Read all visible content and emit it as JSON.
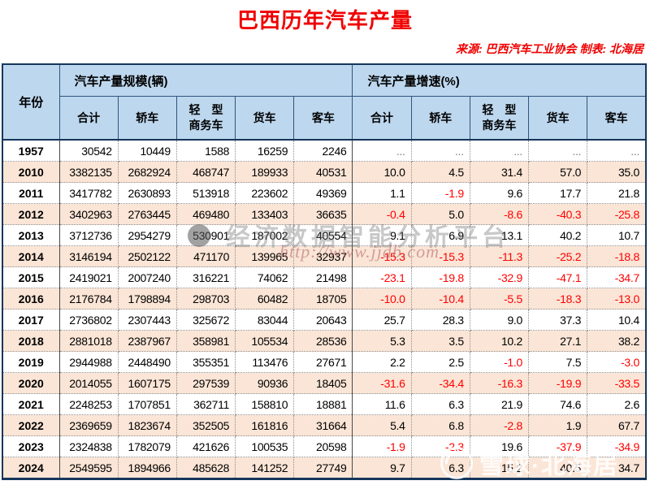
{
  "chart_data": {
    "type": "table",
    "title": "巴西历年汽车产量",
    "source_line": "来源: 巴西汽车工业协会  制表: 北海居",
    "year_header": "年份",
    "groups": [
      {
        "label": "汽车产量规模(辆)",
        "subheaders": [
          "合计",
          "轿车",
          "轻　型\n商务车",
          "货车",
          "客车"
        ]
      },
      {
        "label": "汽车产量增速(%)",
        "subheaders": [
          "合计",
          "轿车",
          "轻　型\n商务车",
          "货车",
          "客车"
        ]
      }
    ],
    "rows": [
      {
        "year": "1957",
        "scale": [
          "30542",
          "10449",
          "1588",
          "16259",
          "2246"
        ],
        "growth": [
          "...",
          "...",
          "...",
          "...",
          "..."
        ]
      },
      {
        "year": "2010",
        "scale": [
          "3382135",
          "2682924",
          "468747",
          "189933",
          "40531"
        ],
        "growth": [
          "10.0",
          "4.5",
          "31.4",
          "57.0",
          "35.0"
        ]
      },
      {
        "year": "2011",
        "scale": [
          "3417782",
          "2630893",
          "513918",
          "223602",
          "49369"
        ],
        "growth": [
          "1.1",
          "-1.9",
          "9.6",
          "17.7",
          "21.8"
        ]
      },
      {
        "year": "2012",
        "scale": [
          "3402963",
          "2763445",
          "469480",
          "133403",
          "36635"
        ],
        "growth": [
          "-0.4",
          "5.0",
          "-8.6",
          "-40.3",
          "-25.8"
        ]
      },
      {
        "year": "2013",
        "scale": [
          "3712736",
          "2954279",
          "530901",
          "187002",
          "40554"
        ],
        "growth": [
          "9.1",
          "6.9",
          "13.1",
          "40.2",
          "10.7"
        ]
      },
      {
        "year": "2014",
        "scale": [
          "3146194",
          "2502122",
          "471170",
          "139965",
          "32937"
        ],
        "growth": [
          "-15.3",
          "-15.3",
          "-11.3",
          "-25.2",
          "-18.8"
        ]
      },
      {
        "year": "2015",
        "scale": [
          "2419021",
          "2007240",
          "316221",
          "74062",
          "21498"
        ],
        "growth": [
          "-23.1",
          "-19.8",
          "-32.9",
          "-47.1",
          "-34.7"
        ]
      },
      {
        "year": "2016",
        "scale": [
          "2176784",
          "1798894",
          "298703",
          "60482",
          "18705"
        ],
        "growth": [
          "-10.0",
          "-10.4",
          "-5.5",
          "-18.3",
          "-13.0"
        ]
      },
      {
        "year": "2017",
        "scale": [
          "2736802",
          "2307443",
          "325672",
          "83044",
          "20643"
        ],
        "growth": [
          "25.7",
          "28.3",
          "9.0",
          "37.3",
          "10.4"
        ]
      },
      {
        "year": "2018",
        "scale": [
          "2881018",
          "2387967",
          "358981",
          "105534",
          "28536"
        ],
        "growth": [
          "5.3",
          "3.5",
          "10.2",
          "27.1",
          "38.2"
        ]
      },
      {
        "year": "2019",
        "scale": [
          "2944988",
          "2448490",
          "355351",
          "113476",
          "27671"
        ],
        "growth": [
          "2.2",
          "2.5",
          "-1.0",
          "7.5",
          "-3.0"
        ]
      },
      {
        "year": "2020",
        "scale": [
          "2014055",
          "1607175",
          "297539",
          "90936",
          "18405"
        ],
        "growth": [
          "-31.6",
          "-34.4",
          "-16.3",
          "-19.9",
          "-33.5"
        ]
      },
      {
        "year": "2021",
        "scale": [
          "2248253",
          "1707851",
          "362711",
          "158810",
          "18881"
        ],
        "growth": [
          "11.6",
          "6.3",
          "21.9",
          "74.6",
          "2.6"
        ]
      },
      {
        "year": "2022",
        "scale": [
          "2369659",
          "1823674",
          "352505",
          "161816",
          "31664"
        ],
        "growth": [
          "5.4",
          "6.8",
          "-2.8",
          "1.9",
          "67.7"
        ]
      },
      {
        "year": "2023",
        "scale": [
          "2324838",
          "1782079",
          "421626",
          "100535",
          "20598"
        ],
        "growth": [
          "-1.9",
          "-2.3",
          "19.6",
          "-37.9",
          "-34.9"
        ]
      },
      {
        "year": "2024",
        "scale": [
          "2549595",
          "1894966",
          "485628",
          "141252",
          "27749"
        ],
        "growth": [
          "9.7",
          "6.3",
          "15.2",
          "40.5",
          "34.7"
        ]
      }
    ]
  },
  "watermarks": {
    "center_text": "经济数据智能分析平台",
    "center_url": "http://www.jjdb.com",
    "corner_text": "雪球·北海居"
  },
  "colors": {
    "title_red": "#F00000",
    "negative_red": "#FF0000",
    "header_bg": "#BDD7EE",
    "stripe_bg": "#FBE5D6",
    "border_dark": "#16365C"
  }
}
